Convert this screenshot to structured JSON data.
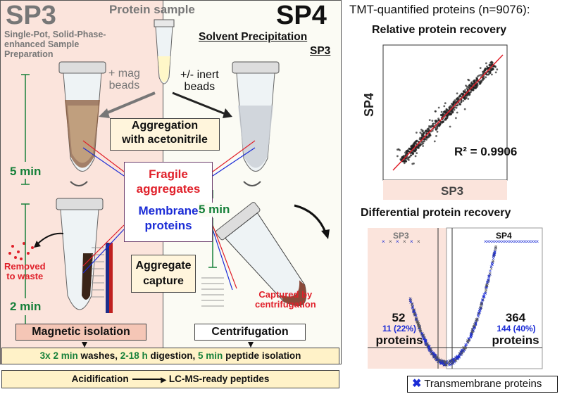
{
  "header": {
    "protein_sample": "Protein sample",
    "tmt_title": "TMT-quantified proteins (n=9076):"
  },
  "sp3": {
    "title": "SP3",
    "subtitle_l1": "Single-Pot, Solid-Phase-",
    "subtitle_l2": "enhanced Sample",
    "subtitle_l3": "Preparation",
    "beads_l1": "+ mag",
    "beads_l2": "beads",
    "time1": "5 min",
    "time2": "2 min",
    "removed_l1": "Removed",
    "removed_l2": "to waste",
    "isolation": "Magnetic isolation"
  },
  "sp4": {
    "title": "SP4",
    "subtitle": "Solvent Precipitation",
    "subtitle_sp3": "SP3",
    "beads_l1": "+/- inert",
    "beads_l2": "beads",
    "time1": "5 min",
    "captured_l1": "Captured by",
    "captured_l2": "centrifugation",
    "isolation": "Centrifugation"
  },
  "center": {
    "aggregation_l1": "Aggregation",
    "aggregation_l2": "with acetonitrile",
    "fragile_l1": "Fragile",
    "fragile_l2": "aggregates",
    "membrane_l1": "Membrane",
    "membrane_l2": "proteins",
    "capture_l1": "Aggregate",
    "capture_l2": "capture"
  },
  "bottom": {
    "washes_a": "3x 2 min",
    "washes_b": " washes, ",
    "washes_c": "2-18 h",
    "washes_d": " digestion, ",
    "washes_e": "5 min",
    "washes_f": " peptide isolation",
    "acid": "Acidification",
    "ready": "LC-MS-ready peptides"
  },
  "scatter": {
    "title": "Relative protein recovery",
    "ylabel": "SP4",
    "xlabel": "SP3",
    "r2": "R² = 0.9906"
  },
  "volcano": {
    "title": "Differential protein recovery",
    "left_label": "SP3",
    "right_label": "SP4",
    "left_count": "52",
    "left_pct": "11 (22%)",
    "left_word": "proteins",
    "right_count": "364",
    "right_pct": "144 (40%)",
    "right_word": "proteins"
  },
  "legend": {
    "marker": "✖",
    "text": "Transmembrane proteins"
  },
  "colors": {
    "sp3_bg": "#fbe4dc",
    "green": "#16803a",
    "red": "#e0202a",
    "blue": "#1a2bd6",
    "box_bg": "#fff5dc"
  }
}
